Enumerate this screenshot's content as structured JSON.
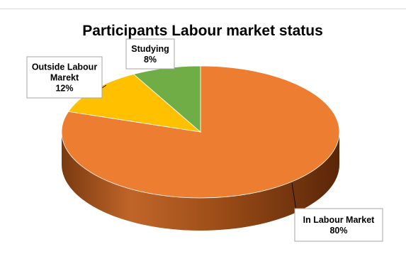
{
  "chart_data": {
    "type": "pie",
    "style": "3d",
    "title": "Participants Labour market status",
    "slices": [
      {
        "label": "In Labour Market",
        "value": 80,
        "display": "80%",
        "color": "#ED7D31",
        "side_color": "#9E4E18"
      },
      {
        "label": "Outside Labour Marekt",
        "value": 12,
        "display": "12%",
        "color": "#FFC000",
        "side_color": "#B38600"
      },
      {
        "label": "Studying",
        "value": 8,
        "display": "8%",
        "color": "#70AD47",
        "side_color": "#4A7A2E"
      }
    ],
    "legend": "none"
  }
}
